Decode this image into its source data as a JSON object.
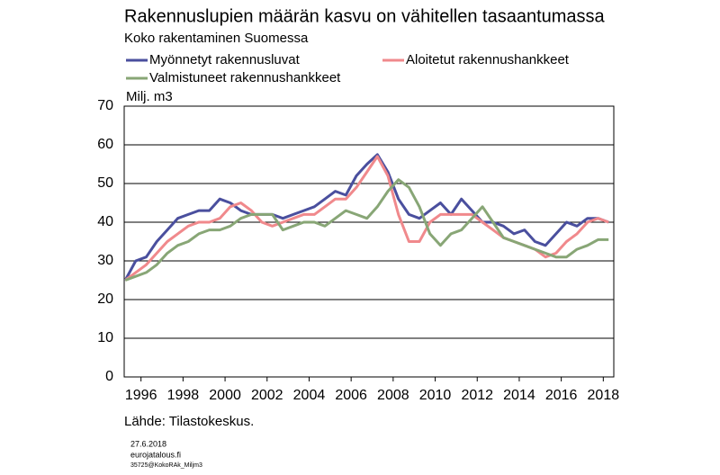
{
  "chart_data": {
    "type": "line",
    "title": "Rakennuslupien määrän kasvu on vähitellen tasaantumassa",
    "subtitle": "Koko rakentaminen Suomessa",
    "y_label": "Milj. m3",
    "source": "Lähde: Tilastokeskus.",
    "footer": [
      "27.6.2018",
      "eurojatalous.fi",
      "35725@KokoRAk_Miljm3"
    ],
    "x": [
      1995.25,
      1995.75,
      1996.25,
      1996.75,
      1997.25,
      1997.75,
      1998.25,
      1998.75,
      1999.25,
      1999.75,
      2000.25,
      2000.75,
      2001.25,
      2001.75,
      2002.25,
      2002.75,
      2003.25,
      2003.75,
      2004.25,
      2004.75,
      2005.25,
      2005.75,
      2006.25,
      2006.75,
      2007.25,
      2007.75,
      2008.25,
      2008.75,
      2009.25,
      2009.75,
      2010.25,
      2010.75,
      2011.25,
      2011.75,
      2012.25,
      2012.75,
      2013.25,
      2013.75,
      2014.25,
      2014.75,
      2015.25,
      2015.75,
      2016.25,
      2016.75,
      2017.25,
      2017.75,
      2018.25
    ],
    "series": [
      {
        "name": "Myönnetyt rakennusluvat",
        "color": "#4a4f9e",
        "values": [
          25,
          30,
          31,
          35,
          38,
          41,
          42,
          43,
          43,
          46,
          45,
          43,
          42,
          42,
          42,
          41,
          42,
          43,
          44,
          46,
          48,
          47,
          52,
          55,
          57.5,
          53,
          46,
          42,
          41,
          43,
          45,
          42,
          46,
          43,
          40,
          40,
          39,
          37,
          38,
          35,
          34,
          37,
          40,
          39,
          41,
          41,
          40
        ]
      },
      {
        "name": "Aloitetut rakennushankkeet",
        "color": "#f0898c",
        "values": [
          25,
          27,
          29,
          32,
          35,
          37,
          39,
          40,
          40,
          41,
          44,
          45,
          43,
          40,
          39,
          40,
          41,
          42,
          42,
          44,
          46,
          46,
          49,
          53,
          57,
          52,
          42,
          35,
          35,
          40,
          42,
          42,
          42,
          42,
          40,
          38,
          36,
          35,
          34,
          33,
          31,
          32,
          35,
          37,
          40,
          41,
          40
        ]
      },
      {
        "name": "Valmistuneet rakennushankkeet",
        "color": "#88a676",
        "values": [
          25,
          26,
          27,
          29,
          32,
          34,
          35,
          37,
          38,
          38,
          39,
          41,
          42,
          42,
          42,
          38,
          39,
          40,
          40,
          39,
          41,
          43,
          42,
          41,
          44,
          48,
          51,
          49,
          44,
          37,
          34,
          37,
          38,
          41,
          44,
          40,
          36,
          35,
          34,
          33,
          32,
          31,
          31,
          33,
          34,
          35.5,
          35.5
        ]
      }
    ],
    "xlim": [
      1995.2,
      2018.5
    ],
    "xticks": [
      1996,
      1998,
      2000,
      2002,
      2004,
      2006,
      2008,
      2010,
      2012,
      2014,
      2016,
      2018
    ],
    "ylim": [
      0,
      70
    ],
    "yticks": [
      0,
      10,
      20,
      30,
      40,
      50,
      60,
      70
    ],
    "grid": true
  }
}
